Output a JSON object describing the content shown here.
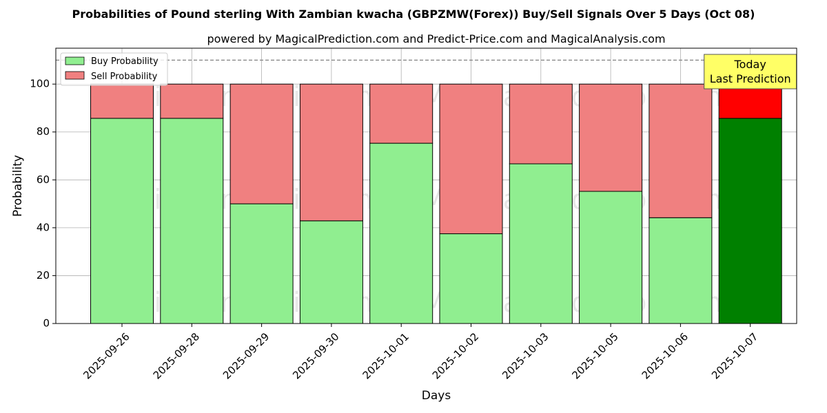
{
  "chart_data": {
    "type": "bar",
    "stacked": true,
    "title": "Probabilities of Pound sterling With Zambian kwacha (GBPZMW(Forex)) Buy/Sell Signals Over 5 Days (Oct 08)",
    "subtitle": "powered by MagicalPrediction.com and Predict-Price.com and MagicalAnalysis.com",
    "xlabel": "Days",
    "ylabel": "Probability",
    "ylim": [
      0,
      115
    ],
    "yticks": [
      0,
      20,
      40,
      60,
      80,
      100
    ],
    "grid": true,
    "reference_line": 110,
    "legend_position": "top-left",
    "categories": [
      "2025-09-26",
      "2025-09-28",
      "2025-09-29",
      "2025-09-30",
      "2025-10-01",
      "2025-10-02",
      "2025-10-03",
      "2025-10-05",
      "2025-10-06",
      "2025-10-07"
    ],
    "series": [
      {
        "name": "Buy Probability",
        "values": [
          85.7,
          85.7,
          50,
          42.9,
          75.3,
          37.5,
          66.7,
          55.2,
          44.2,
          85.7
        ],
        "color": "#90ee90",
        "highlight_color": "#008000"
      },
      {
        "name": "Sell Probability",
        "values": [
          14.3,
          14.3,
          50,
          57.1,
          24.7,
          62.5,
          33.3,
          44.8,
          55.8,
          14.3
        ],
        "color": "#f08080",
        "highlight_color": "#ff0000"
      }
    ],
    "highlight_index": 9,
    "annotation": {
      "line1": "Today",
      "line2": "Last Prediction",
      "color": "#ffff66"
    },
    "watermarks": [
      "MagicalAnalysis.com",
      "MagicalPrediction.com"
    ]
  }
}
